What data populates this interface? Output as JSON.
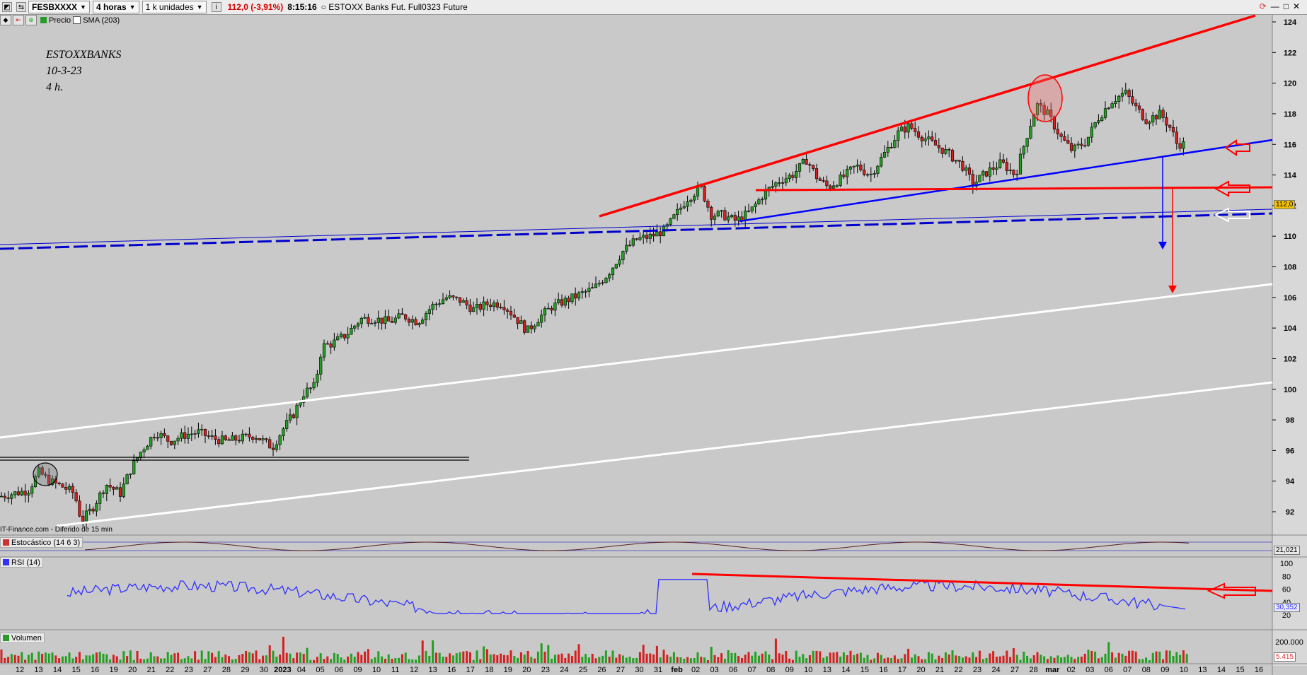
{
  "toolbar": {
    "symbol": "FESBXXXX",
    "timeframe": "4 horas",
    "units": "1 k unidades",
    "price_change": "112,0 (-3,91%)",
    "time": "8:15:16",
    "instrument": "ESTOXX Banks Fut. Full0323 Future"
  },
  "toolbar2": {
    "price_label": "Precio",
    "sma_label": "SMA (203)"
  },
  "annotation": [
    "ESTOXXBANKS",
    "10-3-23",
    "4 h."
  ],
  "watermark": "IT-Finance.com - Diferido de 15 min",
  "price_axis": {
    "ticks": [
      "124",
      "122",
      "120",
      "118",
      "116",
      "114",
      "112",
      "110",
      "108",
      "106",
      "104",
      "102",
      "100",
      "98",
      "96",
      "94",
      "92"
    ],
    "last_price": "112,0",
    "last_price_color": "#f2c200"
  },
  "panels": {
    "stochastic_label": "Estocástico (14 6 3)",
    "stochastic_value": "21,021",
    "rsi_label": "RSI (14)",
    "rsi_ticks": [
      "100",
      "80",
      "60",
      "40",
      "20"
    ],
    "rsi_value": "30,352",
    "volume_label": "Volumen",
    "volume_ticks": [
      "200.000"
    ],
    "volume_value": "5.415"
  },
  "x_axis": {
    "labels": [
      "12",
      "13",
      "14",
      "15",
      "16",
      "19",
      "20",
      "21",
      "22",
      "23",
      "27",
      "28",
      "29",
      "30",
      "2023",
      "04",
      "05",
      "06",
      "09",
      "10",
      "11",
      "12",
      "13",
      "16",
      "17",
      "18",
      "19",
      "20",
      "23",
      "24",
      "25",
      "26",
      "27",
      "30",
      "31",
      "feb",
      "02",
      "03",
      "06",
      "07",
      "08",
      "09",
      "10",
      "13",
      "14",
      "15",
      "16",
      "17",
      "20",
      "21",
      "22",
      "23",
      "24",
      "27",
      "28",
      "mar",
      "02",
      "03",
      "06",
      "07",
      "08",
      "09",
      "10",
      "13",
      "14",
      "15",
      "16"
    ]
  },
  "colors": {
    "up": "#22a022",
    "down": "#d42020",
    "trend_red": "#ff0000",
    "trend_blue": "#0000ff",
    "channel_white": "#ffffff",
    "background": "#c9c9c9"
  }
}
